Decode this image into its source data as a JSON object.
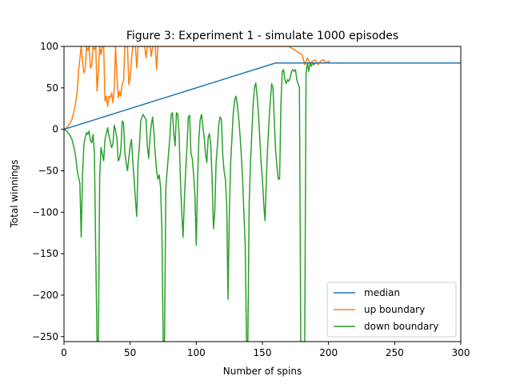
{
  "chart_data": {
    "type": "line",
    "title": "Figure 3: Experiment 1 - simulate 1000 episodes",
    "xlabel": "Number of spins",
    "ylabel": "Total winnings",
    "xlim": [
      0,
      300
    ],
    "ylim": [
      -256,
      100
    ],
    "xticks": [
      0,
      50,
      100,
      150,
      200,
      250,
      300
    ],
    "yticks": [
      -250,
      -200,
      -150,
      -100,
      -50,
      0,
      50,
      100
    ],
    "grid": false,
    "legend": {
      "placement": "lower-right"
    },
    "series": [
      {
        "name": "median",
        "color": "#1f77b4",
        "points": [
          [
            0,
            0
          ],
          [
            40,
            20
          ],
          [
            80,
            40
          ],
          [
            120,
            60
          ],
          [
            160,
            80
          ],
          [
            300,
            80
          ]
        ]
      },
      {
        "name": "up boundary",
        "color": "#ff7f0e",
        "points": [
          [
            0,
            0
          ],
          [
            2,
            2
          ],
          [
            4,
            6
          ],
          [
            6,
            12
          ],
          [
            8,
            25
          ],
          [
            10,
            45
          ],
          [
            11,
            70
          ],
          [
            12,
            85
          ],
          [
            13,
            100
          ],
          [
            14,
            82
          ],
          [
            15,
            68
          ],
          [
            16,
            72
          ],
          [
            17,
            100
          ],
          [
            18,
            95
          ],
          [
            19,
            100
          ],
          [
            20,
            74
          ],
          [
            21,
            78
          ],
          [
            22,
            100
          ],
          [
            23,
            96
          ],
          [
            24,
            100
          ],
          [
            25,
            46
          ],
          [
            26,
            70
          ],
          [
            27,
            100
          ],
          [
            28,
            90
          ],
          [
            29,
            100
          ],
          [
            30,
            100
          ],
          [
            31,
            34
          ],
          [
            32,
            40
          ],
          [
            33,
            28
          ],
          [
            34,
            40
          ],
          [
            35,
            38
          ],
          [
            36,
            44
          ],
          [
            37,
            32
          ],
          [
            38,
            50
          ],
          [
            39,
            100
          ],
          [
            40,
            66
          ],
          [
            41,
            38
          ],
          [
            42,
            46
          ],
          [
            43,
            40
          ],
          [
            44,
            55
          ],
          [
            45,
            58
          ],
          [
            46,
            100
          ],
          [
            47,
            100
          ],
          [
            48,
            100
          ],
          [
            49,
            54
          ],
          [
            50,
            62
          ],
          [
            51,
            84
          ],
          [
            52,
            100
          ],
          [
            53,
            100
          ],
          [
            54,
            100
          ],
          [
            55,
            74
          ],
          [
            56,
            100
          ],
          [
            57,
            100
          ],
          [
            58,
            100
          ],
          [
            59,
            100
          ],
          [
            60,
            100
          ],
          [
            61,
            100
          ],
          [
            62,
            86
          ],
          [
            63,
            100
          ],
          [
            64,
            100
          ],
          [
            65,
            100
          ],
          [
            66,
            88
          ],
          [
            67,
            100
          ],
          [
            68,
            100
          ],
          [
            69,
            100
          ],
          [
            70,
            72
          ],
          [
            71,
            100
          ],
          [
            72,
            100
          ],
          [
            73,
            100
          ],
          [
            74,
            100
          ],
          [
            75,
            100
          ],
          [
            76,
            100
          ],
          [
            77,
            100
          ],
          [
            78,
            100
          ],
          [
            79,
            100
          ],
          [
            80,
            100
          ],
          [
            81,
            100
          ],
          [
            82,
            100
          ],
          [
            83,
            100
          ],
          [
            84,
            100
          ],
          [
            85,
            100
          ],
          [
            86,
            100
          ],
          [
            87,
            100
          ],
          [
            88,
            100
          ],
          [
            89,
            100
          ],
          [
            90,
            100
          ],
          [
            91,
            100
          ],
          [
            92,
            100
          ],
          [
            93,
            100
          ],
          [
            94,
            100
          ],
          [
            95,
            100
          ],
          [
            96,
            100
          ],
          [
            97,
            100
          ],
          [
            98,
            100
          ],
          [
            99,
            100
          ],
          [
            100,
            100
          ],
          [
            120,
            100
          ],
          [
            140,
            100
          ],
          [
            170,
            100
          ],
          [
            180,
            90
          ],
          [
            182,
            78
          ],
          [
            184,
            86
          ],
          [
            186,
            80
          ],
          [
            188,
            82
          ],
          [
            190,
            84
          ],
          [
            192,
            78
          ],
          [
            194,
            82
          ],
          [
            196,
            84
          ],
          [
            198,
            80
          ],
          [
            200,
            82
          ],
          [
            201,
            80
          ],
          [
            300,
            80
          ]
        ]
      },
      {
        "name": "down boundary",
        "color": "#2ca02c",
        "points": [
          [
            0,
            0
          ],
          [
            2,
            -2
          ],
          [
            4,
            -6
          ],
          [
            6,
            -12
          ],
          [
            8,
            -25
          ],
          [
            9,
            -35
          ],
          [
            10,
            -50
          ],
          [
            11,
            -58
          ],
          [
            12,
            -65
          ],
          [
            13,
            -130
          ],
          [
            14,
            -55
          ],
          [
            15,
            -20
          ],
          [
            16,
            -10
          ],
          [
            17,
            -4
          ],
          [
            18,
            -6
          ],
          [
            19,
            -2
          ],
          [
            20,
            -14
          ],
          [
            21,
            -16
          ],
          [
            22,
            -6
          ],
          [
            23,
            -30
          ],
          [
            24,
            -150
          ],
          [
            25,
            -256
          ],
          [
            26,
            -256
          ],
          [
            27,
            -55
          ],
          [
            28,
            -22
          ],
          [
            29,
            -30
          ],
          [
            30,
            -38
          ],
          [
            31,
            -12
          ],
          [
            32,
            -5
          ],
          [
            33,
            2
          ],
          [
            34,
            -8
          ],
          [
            35,
            -15
          ],
          [
            36,
            -22
          ],
          [
            37,
            -18
          ],
          [
            38,
            5
          ],
          [
            39,
            -2
          ],
          [
            40,
            -10
          ],
          [
            41,
            -38
          ],
          [
            42,
            -35
          ],
          [
            43,
            -25
          ],
          [
            44,
            10
          ],
          [
            45,
            8
          ],
          [
            46,
            -28
          ],
          [
            47,
            -40
          ],
          [
            48,
            -50
          ],
          [
            49,
            -35
          ],
          [
            50,
            -20
          ],
          [
            51,
            -12
          ],
          [
            52,
            -38
          ],
          [
            53,
            -60
          ],
          [
            54,
            -85
          ],
          [
            55,
            -105
          ],
          [
            56,
            -40
          ],
          [
            57,
            -20
          ],
          [
            58,
            10
          ],
          [
            59,
            15
          ],
          [
            60,
            18
          ],
          [
            61,
            14
          ],
          [
            62,
            12
          ],
          [
            63,
            -20
          ],
          [
            64,
            -35
          ],
          [
            65,
            -10
          ],
          [
            66,
            5
          ],
          [
            67,
            15
          ],
          [
            68,
            -5
          ],
          [
            69,
            -30
          ],
          [
            70,
            -50
          ],
          [
            71,
            -60
          ],
          [
            72,
            -55
          ],
          [
            73,
            -70
          ],
          [
            74,
            -120
          ],
          [
            75,
            -256
          ],
          [
            76,
            -256
          ],
          [
            77,
            -70
          ],
          [
            78,
            -50
          ],
          [
            79,
            -30
          ],
          [
            80,
            -10
          ],
          [
            81,
            18
          ],
          [
            82,
            20
          ],
          [
            83,
            -5
          ],
          [
            84,
            -20
          ],
          [
            85,
            20
          ],
          [
            86,
            18
          ],
          [
            87,
            -5
          ],
          [
            88,
            -60
          ],
          [
            89,
            -100
          ],
          [
            90,
            -130
          ],
          [
            91,
            -85
          ],
          [
            92,
            -50
          ],
          [
            93,
            -20
          ],
          [
            94,
            15
          ],
          [
            95,
            17
          ],
          [
            96,
            -30
          ],
          [
            97,
            -35
          ],
          [
            98,
            -55
          ],
          [
            99,
            -80
          ],
          [
            100,
            -140
          ],
          [
            101,
            -60
          ],
          [
            102,
            -10
          ],
          [
            103,
            12
          ],
          [
            104,
            18
          ],
          [
            105,
            3
          ],
          [
            106,
            -10
          ],
          [
            107,
            -30
          ],
          [
            108,
            -40
          ],
          [
            109,
            -10
          ],
          [
            110,
            -5
          ],
          [
            111,
            -20
          ],
          [
            112,
            -60
          ],
          [
            113,
            -120
          ],
          [
            114,
            -100
          ],
          [
            115,
            -40
          ],
          [
            116,
            -20
          ],
          [
            117,
            5
          ],
          [
            118,
            15
          ],
          [
            119,
            12
          ],
          [
            120,
            -30
          ],
          [
            121,
            -50
          ],
          [
            122,
            -60
          ],
          [
            123,
            -90
          ],
          [
            124,
            -205
          ],
          [
            125,
            -100
          ],
          [
            126,
            -40
          ],
          [
            127,
            -10
          ],
          [
            128,
            20
          ],
          [
            129,
            35
          ],
          [
            130,
            40
          ],
          [
            131,
            30
          ],
          [
            132,
            15
          ],
          [
            133,
            -5
          ],
          [
            134,
            -30
          ],
          [
            135,
            -60
          ],
          [
            136,
            -100
          ],
          [
            137,
            -140
          ],
          [
            138,
            -256
          ],
          [
            139,
            -256
          ],
          [
            140,
            -90
          ],
          [
            141,
            -40
          ],
          [
            142,
            -5
          ],
          [
            143,
            30
          ],
          [
            144,
            50
          ],
          [
            145,
            56
          ],
          [
            146,
            40
          ],
          [
            147,
            20
          ],
          [
            148,
            -10
          ],
          [
            149,
            -40
          ],
          [
            150,
            -60
          ],
          [
            151,
            -90
          ],
          [
            152,
            -110
          ],
          [
            153,
            -60
          ],
          [
            154,
            -20
          ],
          [
            155,
            10
          ],
          [
            156,
            35
          ],
          [
            157,
            55
          ],
          [
            158,
            50
          ],
          [
            159,
            10
          ],
          [
            160,
            -25
          ],
          [
            161,
            -45
          ],
          [
            162,
            -60
          ],
          [
            163,
            -60
          ],
          [
            164,
            30
          ],
          [
            165,
            70
          ],
          [
            166,
            72
          ],
          [
            167,
            60
          ],
          [
            168,
            55
          ],
          [
            169,
            60
          ],
          [
            170,
            58
          ],
          [
            171,
            62
          ],
          [
            172,
            70
          ],
          [
            173,
            72
          ],
          [
            174,
            70
          ],
          [
            175,
            72
          ],
          [
            176,
            60
          ],
          [
            177,
            55
          ],
          [
            178,
            50
          ],
          [
            179,
            -256
          ],
          [
            180,
            -256
          ],
          [
            181,
            -256
          ],
          [
            182,
            -256
          ],
          [
            183,
            68
          ],
          [
            184,
            80
          ],
          [
            185,
            70
          ],
          [
            186,
            80
          ],
          [
            187,
            76
          ],
          [
            188,
            80
          ],
          [
            189,
            78
          ],
          [
            190,
            80
          ],
          [
            200,
            80
          ],
          [
            300,
            80
          ]
        ]
      }
    ]
  }
}
